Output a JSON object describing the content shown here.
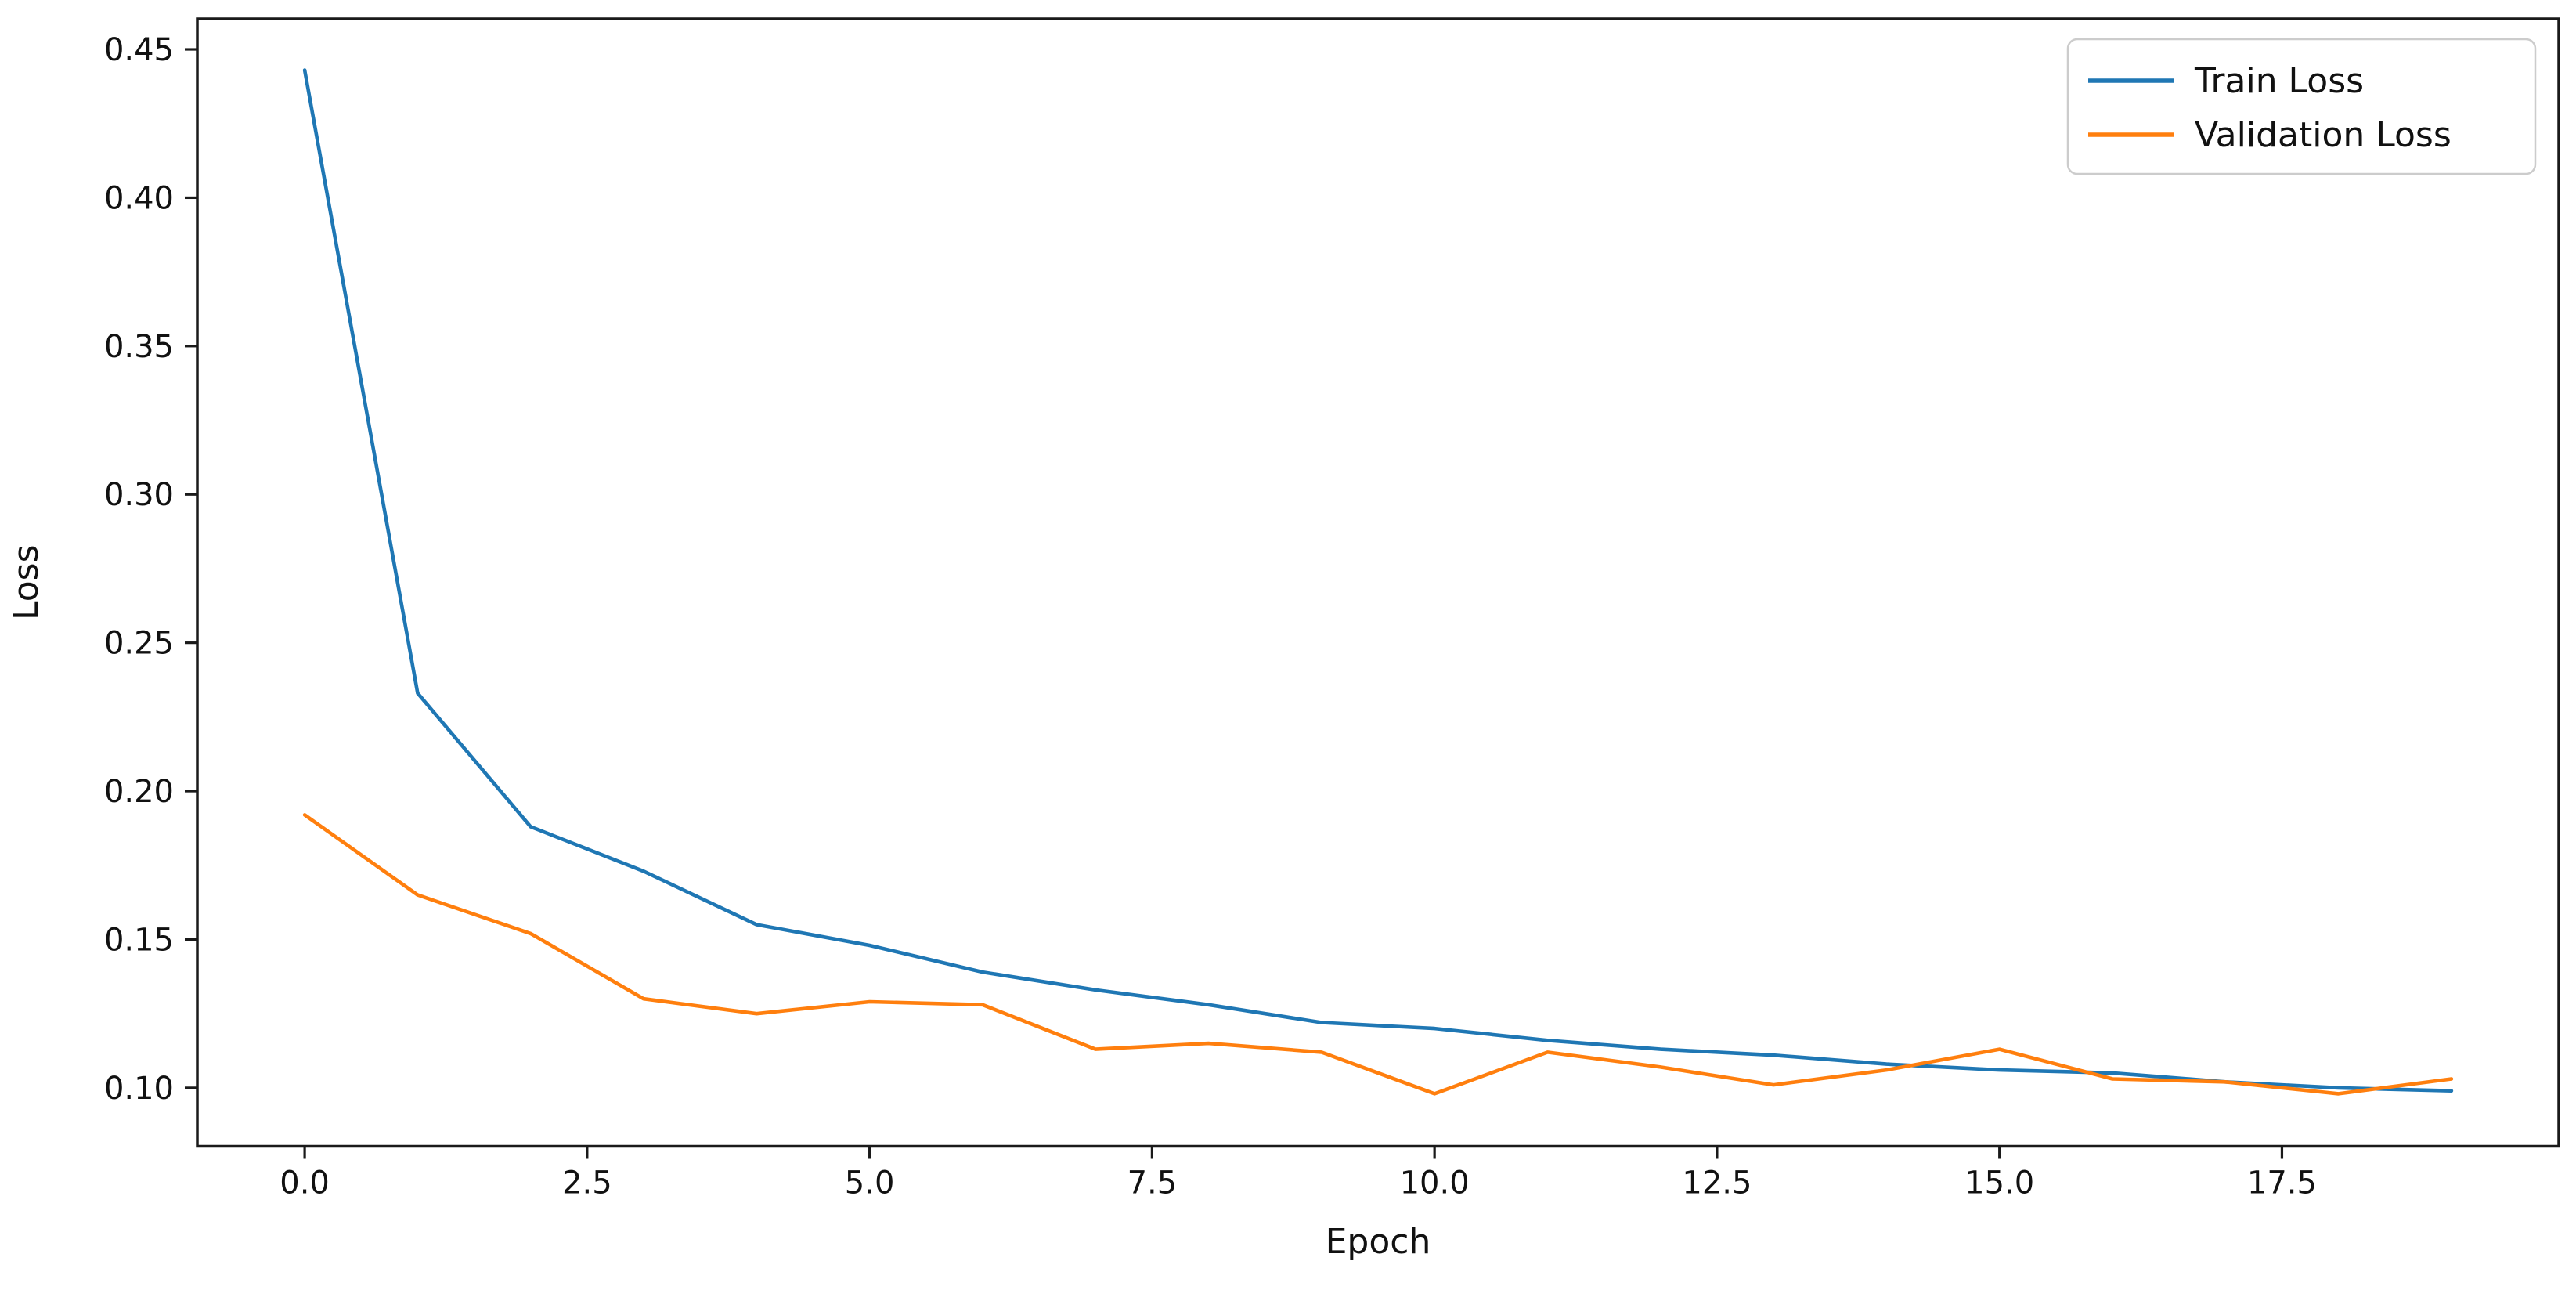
{
  "figure": {
    "background": "#ffffff"
  },
  "chart_data": {
    "type": "line",
    "title": "",
    "xlabel": "Epoch",
    "ylabel": "Loss",
    "x": [
      0,
      1,
      2,
      3,
      4,
      5,
      6,
      7,
      8,
      9,
      10,
      11,
      12,
      13,
      14,
      15,
      16,
      17,
      18,
      19
    ],
    "series": [
      {
        "name": "Train Loss",
        "color": "#1f77b4",
        "values": [
          0.443,
          0.233,
          0.188,
          0.173,
          0.155,
          0.148,
          0.139,
          0.133,
          0.128,
          0.122,
          0.12,
          0.116,
          0.113,
          0.111,
          0.108,
          0.106,
          0.105,
          0.102,
          0.1,
          0.099
        ]
      },
      {
        "name": "Validation Loss",
        "color": "#ff7f0e",
        "values": [
          0.192,
          0.165,
          0.152,
          0.13,
          0.125,
          0.129,
          0.128,
          0.113,
          0.115,
          0.112,
          0.098,
          0.112,
          0.107,
          0.101,
          0.106,
          0.113,
          0.103,
          0.102,
          0.098,
          0.103
        ]
      }
    ],
    "xlim": [
      -0.95,
      19.95
    ],
    "ylim": [
      0.0803,
      0.4603
    ],
    "xticks": {
      "values": [
        0.0,
        2.5,
        5.0,
        7.5,
        10.0,
        12.5,
        15.0,
        17.5
      ],
      "labels": [
        "0.0",
        "2.5",
        "5.0",
        "7.5",
        "10.0",
        "12.5",
        "15.0",
        "17.5"
      ]
    },
    "yticks": {
      "values": [
        0.1,
        0.15,
        0.2,
        0.25,
        0.3,
        0.35,
        0.4,
        0.45
      ],
      "labels": [
        "0.10",
        "0.15",
        "0.20",
        "0.25",
        "0.30",
        "0.35",
        "0.40",
        "0.45"
      ]
    },
    "grid": false,
    "legend": {
      "position": "upper right",
      "entries": [
        "Train Loss",
        "Validation Loss"
      ]
    },
    "axis_color": "#1a1a1a",
    "text_color": "#111111",
    "legend_border_color": "#cccccc",
    "legend_background": "#ffffff"
  }
}
